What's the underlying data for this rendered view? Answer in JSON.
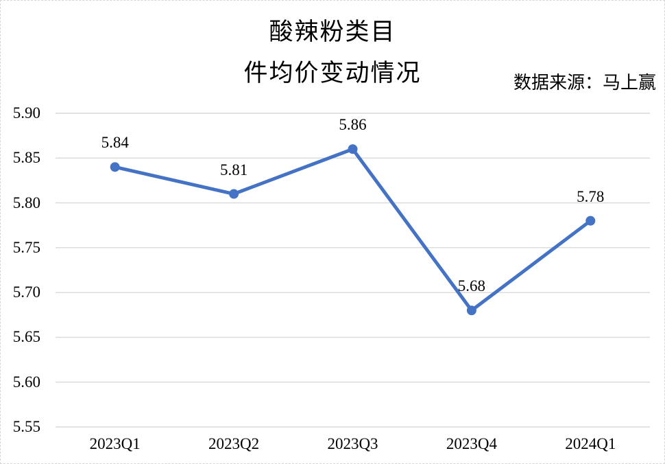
{
  "title": {
    "line1": "酸辣粉类目",
    "line2": "件均价变动情况"
  },
  "source": "数据来源：马上赢",
  "chart_data": {
    "type": "line",
    "title": "酸辣粉类目 件均价变动情况",
    "categories": [
      "2023Q1",
      "2023Q2",
      "2023Q3",
      "2023Q4",
      "2024Q1"
    ],
    "values": [
      5.84,
      5.81,
      5.86,
      5.68,
      5.78
    ],
    "data_labels": [
      "5.84",
      "5.81",
      "5.86",
      "5.68",
      "5.78"
    ],
    "y_tick_labels": [
      "5.90",
      "5.85",
      "5.80",
      "5.75",
      "5.70",
      "5.65",
      "5.60",
      "5.55"
    ],
    "y_ticks": [
      5.9,
      5.85,
      5.8,
      5.75,
      5.7,
      5.65,
      5.6,
      5.55
    ],
    "ylim": [
      5.55,
      5.9
    ],
    "xlabel": "",
    "ylabel": "",
    "grid": true,
    "legend": "none",
    "line_color": "#4472C4",
    "grid_color": "#D9D9D9",
    "text_color": "#000000"
  }
}
